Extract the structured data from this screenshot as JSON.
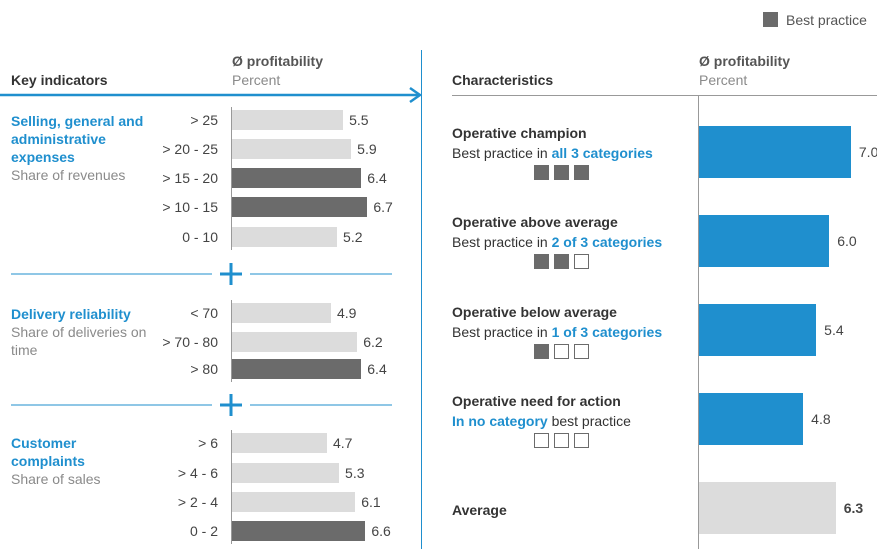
{
  "legend": "Best practice",
  "left": {
    "header": "Key indicators",
    "metric": "Ø profitability",
    "unit": "Percent",
    "groups": [
      {
        "title": "Selling, general and administrative expenses",
        "subtitle": "Share of revenues",
        "rows": [
          {
            "range": "> 25",
            "value": 5.5,
            "best": false
          },
          {
            "range": "> 20 - 25",
            "value": 5.9,
            "best": false
          },
          {
            "range": "> 15 - 20",
            "value": 6.4,
            "best": true
          },
          {
            "range": "> 10 - 15",
            "value": 6.7,
            "best": true
          },
          {
            "range": "0 - 10",
            "value": 5.2,
            "best": false
          }
        ]
      },
      {
        "title": "Delivery reliability",
        "subtitle": "Share of deliveries on time",
        "rows": [
          {
            "range": "< 70",
            "value": 4.9,
            "best": false
          },
          {
            "range": "> 70 - 80",
            "value": 6.2,
            "best": false
          },
          {
            "range": "> 80",
            "value": 6.4,
            "best": true
          }
        ]
      },
      {
        "title": "Customer complaints",
        "subtitle": "Share of sales",
        "rows": [
          {
            "range": "> 6",
            "value": 4.7,
            "best": false
          },
          {
            "range": "> 4 - 6",
            "value": 5.3,
            "best": false
          },
          {
            "range": "> 2 - 4",
            "value": 6.1,
            "best": false
          },
          {
            "range": "0 - 2",
            "value": 6.6,
            "best": true
          }
        ]
      }
    ]
  },
  "right": {
    "header": "Characteristics",
    "metric": "Ø profitability",
    "unit": "Percent",
    "items": [
      {
        "name": "Operative champion",
        "desc": [
          {
            "text": "Best practice in ",
            "highlight": false
          },
          {
            "text": "all 3 categories",
            "highlight": true
          }
        ],
        "filled": 3,
        "value": 7,
        "value_label": "7.0"
      },
      {
        "name": "Operative above average",
        "desc": [
          {
            "text": "Best practice in ",
            "highlight": false
          },
          {
            "text": "2 of 3 categories",
            "highlight": true
          }
        ],
        "filled": 2,
        "value": 6,
        "value_label": "6.0"
      },
      {
        "name": "Operative below average",
        "desc": [
          {
            "text": "Best practice in ",
            "highlight": false
          },
          {
            "text": "1 of 3 categories",
            "highlight": true
          }
        ],
        "filled": 1,
        "value": 5.4
      },
      {
        "name": "Operative need for action",
        "desc": [
          {
            "text": "In no category",
            "highlight": true
          },
          {
            "text": " best practice",
            "highlight": false
          }
        ],
        "filled": 0,
        "value": 4.8
      },
      {
        "name": "Average",
        "value": 6.3,
        "average": true
      }
    ]
  }
}
